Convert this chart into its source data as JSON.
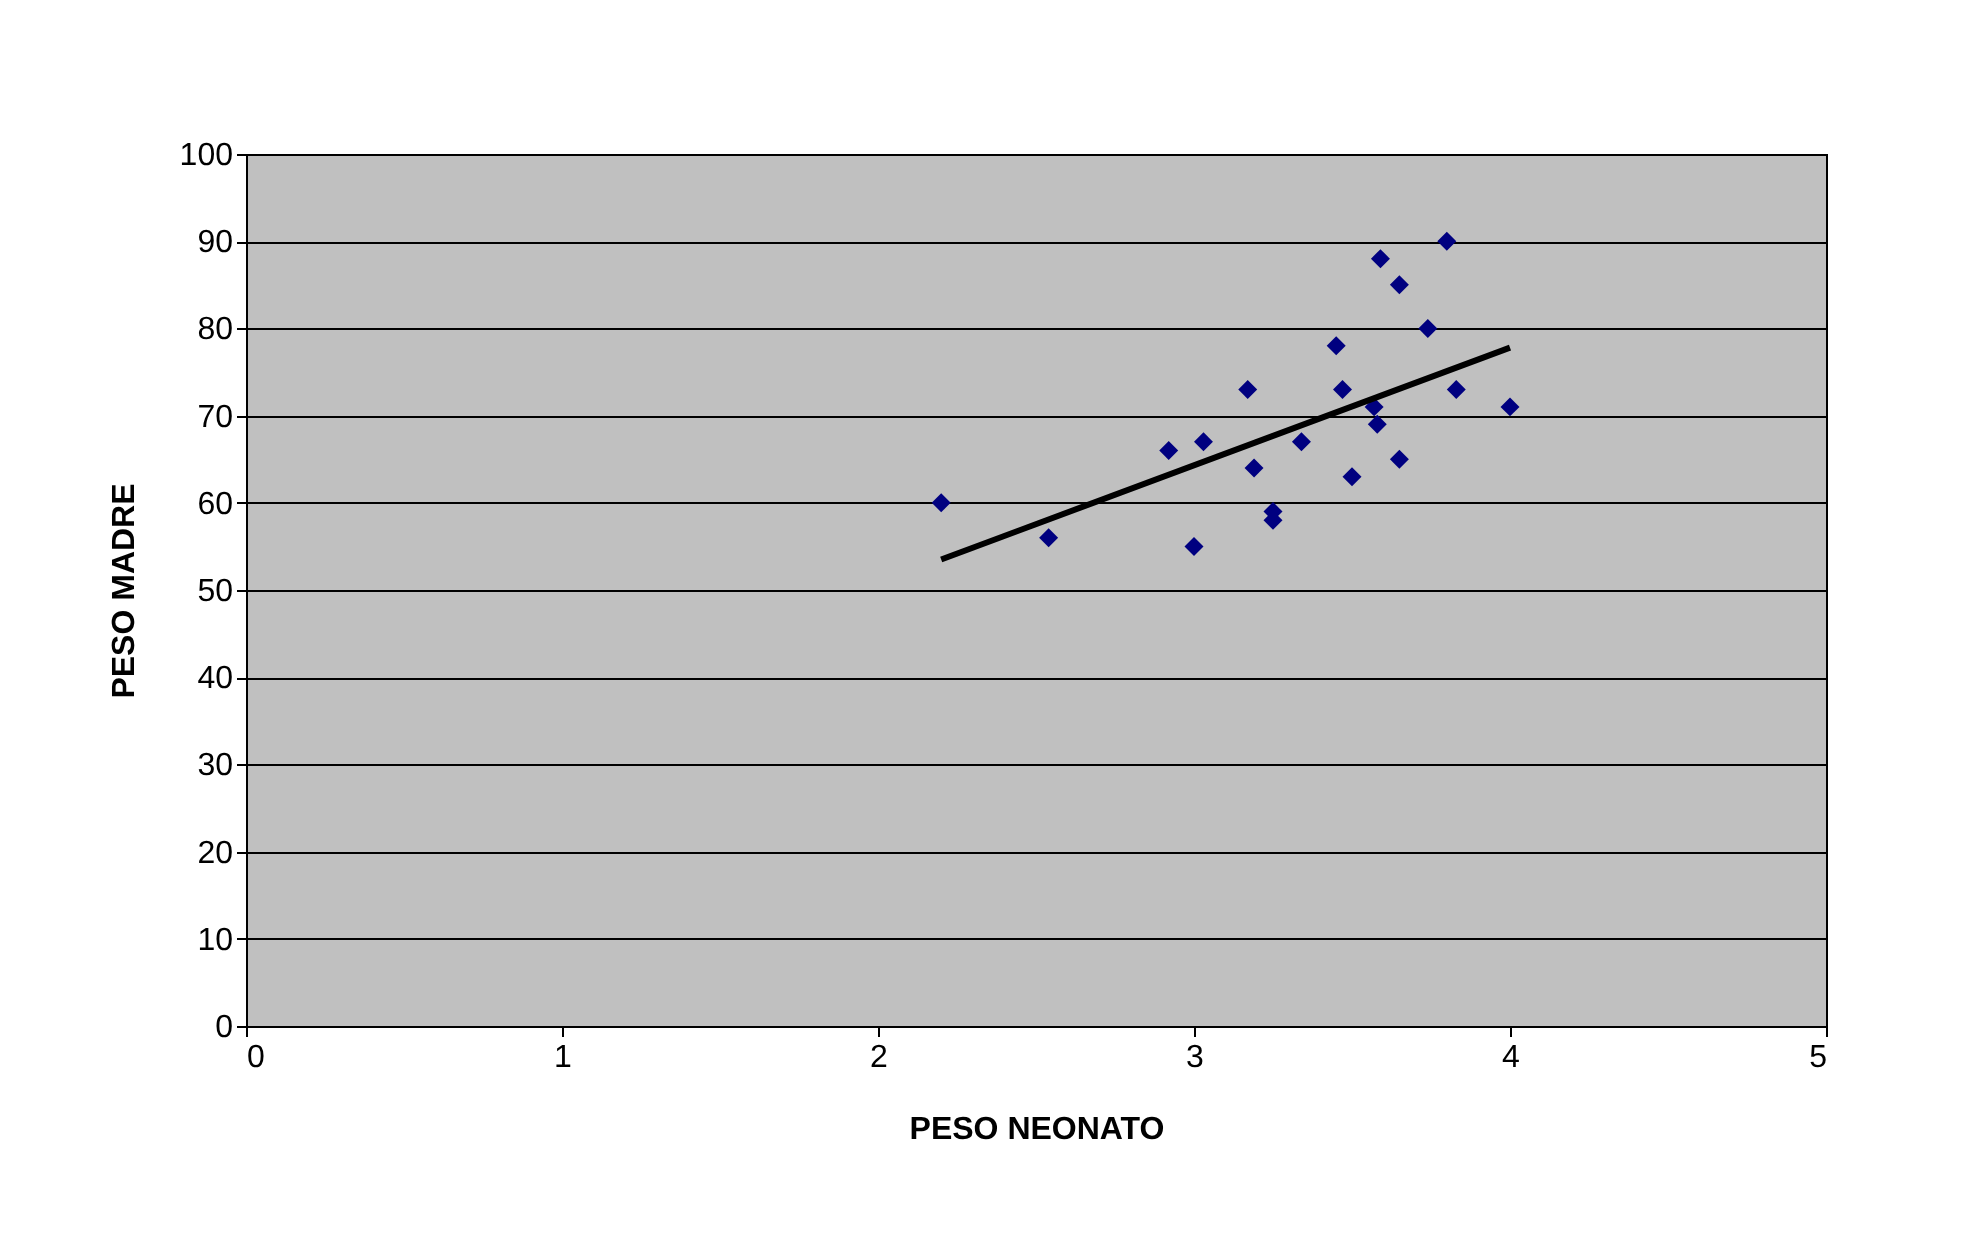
{
  "chart_data": {
    "type": "scatter",
    "xlabel": "PESO NEONATO",
    "ylabel": "PESO MADRE",
    "xlim": [
      0,
      5
    ],
    "xticks": [
      0,
      1,
      2,
      3,
      4,
      5
    ],
    "ylim": [
      0,
      100
    ],
    "yticks": [
      0,
      10,
      20,
      30,
      40,
      50,
      60,
      70,
      80,
      90,
      100
    ],
    "grid": "y",
    "series": [
      {
        "marker": "diamond",
        "color": "#000080",
        "x": [
          2.2,
          2.54,
          3.0,
          2.92,
          3.03,
          3.17,
          3.19,
          3.25,
          3.25,
          3.34,
          3.45,
          3.47,
          3.5,
          3.57,
          3.58,
          3.59,
          3.65,
          3.65,
          3.74,
          3.8,
          3.83,
          4.0
        ],
        "values": [
          60,
          56,
          55,
          66,
          67,
          73,
          64,
          59,
          58,
          67,
          78,
          73,
          63,
          71,
          69,
          88,
          85,
          65,
          80,
          90,
          73,
          71
        ]
      },
      {
        "type": "line",
        "marker": "none",
        "color": "#000000",
        "x": [
          2.2,
          4.0
        ],
        "values": [
          53.5,
          77.8
        ]
      }
    ]
  }
}
